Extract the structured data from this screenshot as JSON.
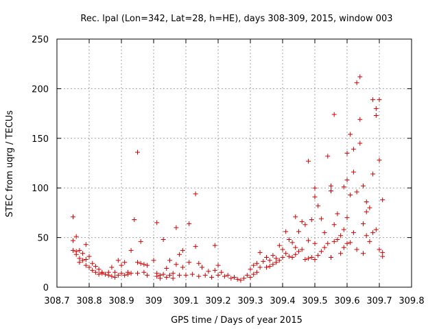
{
  "chart_data": {
    "type": "scatter",
    "title": "Rec. lpal (Lon=342, Lat=28, h=HE), days 308-309, 2015, window 003",
    "xlabel": "GPS time / Days of year 2015",
    "ylabel": "STEC from uqrg / TECUs",
    "xlim": [
      308.7,
      309.8
    ],
    "ylim": [
      0,
      250
    ],
    "xticks": [
      "308.7",
      "308.8",
      "308.9",
      "309",
      "309.1",
      "309.2",
      "309.3",
      "309.4",
      "309.5",
      "309.6",
      "309.7",
      "309.8"
    ],
    "yticks": [
      "0",
      "50",
      "100",
      "150",
      "200",
      "250"
    ],
    "grid": true,
    "marker": "+",
    "color": "#cc0000",
    "series": [
      {
        "points": [
          [
            308.75,
            71
          ],
          [
            308.75,
            47
          ],
          [
            308.75,
            37
          ],
          [
            308.76,
            51
          ],
          [
            308.76,
            36
          ],
          [
            308.76,
            33
          ],
          [
            308.77,
            37
          ],
          [
            308.77,
            29
          ],
          [
            308.77,
            25
          ],
          [
            308.78,
            34
          ],
          [
            308.78,
            27
          ],
          [
            308.79,
            43
          ],
          [
            308.79,
            28
          ],
          [
            308.79,
            22
          ],
          [
            308.8,
            31
          ],
          [
            308.8,
            20
          ],
          [
            308.81,
            24
          ],
          [
            308.81,
            17
          ],
          [
            308.82,
            21
          ],
          [
            308.82,
            15
          ],
          [
            308.83,
            18
          ],
          [
            308.83,
            13
          ],
          [
            308.84,
            15
          ],
          [
            308.84,
            14
          ],
          [
            308.85,
            13
          ],
          [
            308.86,
            12
          ],
          [
            308.86,
            15
          ],
          [
            308.87,
            11
          ],
          [
            308.87,
            20
          ],
          [
            308.88,
            15
          ],
          [
            308.88,
            10
          ],
          [
            308.89,
            27
          ],
          [
            308.89,
            12
          ],
          [
            308.9,
            22
          ],
          [
            308.9,
            14
          ],
          [
            308.91,
            12
          ],
          [
            308.91,
            25
          ],
          [
            308.92,
            15
          ],
          [
            308.92,
            13
          ],
          [
            308.93,
            37
          ],
          [
            308.93,
            14
          ],
          [
            308.94,
            68
          ],
          [
            308.95,
            136
          ],
          [
            308.95,
            25
          ],
          [
            308.95,
            14
          ],
          [
            308.96,
            46
          ],
          [
            308.96,
            24
          ],
          [
            308.97,
            23
          ],
          [
            308.97,
            15
          ],
          [
            308.98,
            22
          ],
          [
            308.98,
            12
          ],
          [
            309.0,
            27
          ],
          [
            309.01,
            65
          ],
          [
            309.01,
            14
          ],
          [
            309.01,
            11
          ],
          [
            309.02,
            12
          ],
          [
            309.02,
            9
          ],
          [
            309.03,
            48
          ],
          [
            309.03,
            13
          ],
          [
            309.04,
            19
          ],
          [
            309.04,
            10
          ],
          [
            309.05,
            27
          ],
          [
            309.05,
            12
          ],
          [
            309.06,
            14
          ],
          [
            309.06,
            9
          ],
          [
            309.07,
            60
          ],
          [
            309.07,
            23
          ],
          [
            309.08,
            33
          ],
          [
            309.08,
            12
          ],
          [
            309.09,
            37
          ],
          [
            309.09,
            20
          ],
          [
            309.1,
            12
          ],
          [
            309.11,
            64
          ],
          [
            309.11,
            25
          ],
          [
            309.12,
            13
          ],
          [
            309.13,
            94
          ],
          [
            309.13,
            41
          ],
          [
            309.14,
            24
          ],
          [
            309.14,
            11
          ],
          [
            309.15,
            20
          ],
          [
            309.16,
            12
          ],
          [
            309.17,
            16
          ],
          [
            309.18,
            10
          ],
          [
            309.19,
            42
          ],
          [
            309.19,
            17
          ],
          [
            309.2,
            12
          ],
          [
            309.2,
            22
          ],
          [
            309.21,
            15
          ],
          [
            309.22,
            11
          ],
          [
            309.23,
            12
          ],
          [
            309.24,
            9
          ],
          [
            309.25,
            10
          ],
          [
            309.26,
            8
          ],
          [
            309.27,
            7
          ],
          [
            309.28,
            9
          ],
          [
            309.29,
            12
          ],
          [
            309.3,
            18
          ],
          [
            309.3,
            10
          ],
          [
            309.31,
            22
          ],
          [
            309.31,
            13
          ],
          [
            309.32,
            24
          ],
          [
            309.32,
            15
          ],
          [
            309.33,
            35
          ],
          [
            309.33,
            20
          ],
          [
            309.34,
            26
          ],
          [
            309.35,
            30
          ],
          [
            309.35,
            20
          ],
          [
            309.36,
            27
          ],
          [
            309.36,
            21
          ],
          [
            309.37,
            32
          ],
          [
            309.37,
            23
          ],
          [
            309.38,
            29
          ],
          [
            309.38,
            25
          ],
          [
            309.39,
            42
          ],
          [
            309.39,
            27
          ],
          [
            309.4,
            38
          ],
          [
            309.4,
            30
          ],
          [
            309.41,
            56
          ],
          [
            309.41,
            34
          ],
          [
            309.42,
            48
          ],
          [
            309.42,
            31
          ],
          [
            309.43,
            45
          ],
          [
            309.43,
            30
          ],
          [
            309.44,
            71
          ],
          [
            309.44,
            40
          ],
          [
            309.44,
            33
          ],
          [
            309.45,
            56
          ],
          [
            309.45,
            36
          ],
          [
            309.46,
            66
          ],
          [
            309.46,
            38
          ],
          [
            309.47,
            63
          ],
          [
            309.47,
            28
          ],
          [
            309.48,
            127
          ],
          [
            309.48,
            47
          ],
          [
            309.48,
            29
          ],
          [
            309.49,
            68
          ],
          [
            309.49,
            30
          ],
          [
            309.5,
            100
          ],
          [
            309.5,
            91
          ],
          [
            309.5,
            44
          ],
          [
            309.5,
            28
          ],
          [
            309.51,
            82
          ],
          [
            309.51,
            32
          ],
          [
            309.52,
            69
          ],
          [
            309.52,
            36
          ],
          [
            309.53,
            55
          ],
          [
            309.53,
            40
          ],
          [
            309.54,
            132
          ],
          [
            309.54,
            44
          ],
          [
            309.55,
            102
          ],
          [
            309.55,
            97
          ],
          [
            309.55,
            30
          ],
          [
            309.56,
            174
          ],
          [
            309.56,
            63
          ],
          [
            309.56,
            46
          ],
          [
            309.57,
            74
          ],
          [
            309.57,
            48
          ],
          [
            309.58,
            52
          ],
          [
            309.58,
            34
          ],
          [
            309.59,
            101
          ],
          [
            309.59,
            58
          ],
          [
            309.59,
            40
          ],
          [
            309.6,
            135
          ],
          [
            309.6,
            108
          ],
          [
            309.6,
            70
          ],
          [
            309.6,
            44
          ],
          [
            309.61,
            154
          ],
          [
            309.61,
            93
          ],
          [
            309.61,
            45
          ],
          [
            309.62,
            139
          ],
          [
            309.62,
            116
          ],
          [
            309.62,
            55
          ],
          [
            309.63,
            206
          ],
          [
            309.63,
            96
          ],
          [
            309.63,
            38
          ],
          [
            309.64,
            212
          ],
          [
            309.64,
            145
          ],
          [
            309.64,
            169
          ],
          [
            309.65,
            102
          ],
          [
            309.65,
            64
          ],
          [
            309.65,
            34
          ],
          [
            309.66,
            86
          ],
          [
            309.66,
            76
          ],
          [
            309.66,
            52
          ],
          [
            309.67,
            80
          ],
          [
            309.67,
            46
          ],
          [
            309.68,
            189
          ],
          [
            309.68,
            114
          ],
          [
            309.68,
            55
          ],
          [
            309.69,
            180
          ],
          [
            309.69,
            173
          ],
          [
            309.69,
            58
          ],
          [
            309.7,
            189
          ],
          [
            309.7,
            128
          ],
          [
            309.7,
            38
          ],
          [
            309.71,
            88
          ],
          [
            309.71,
            35
          ],
          [
            309.71,
            31
          ]
        ]
      }
    ]
  }
}
